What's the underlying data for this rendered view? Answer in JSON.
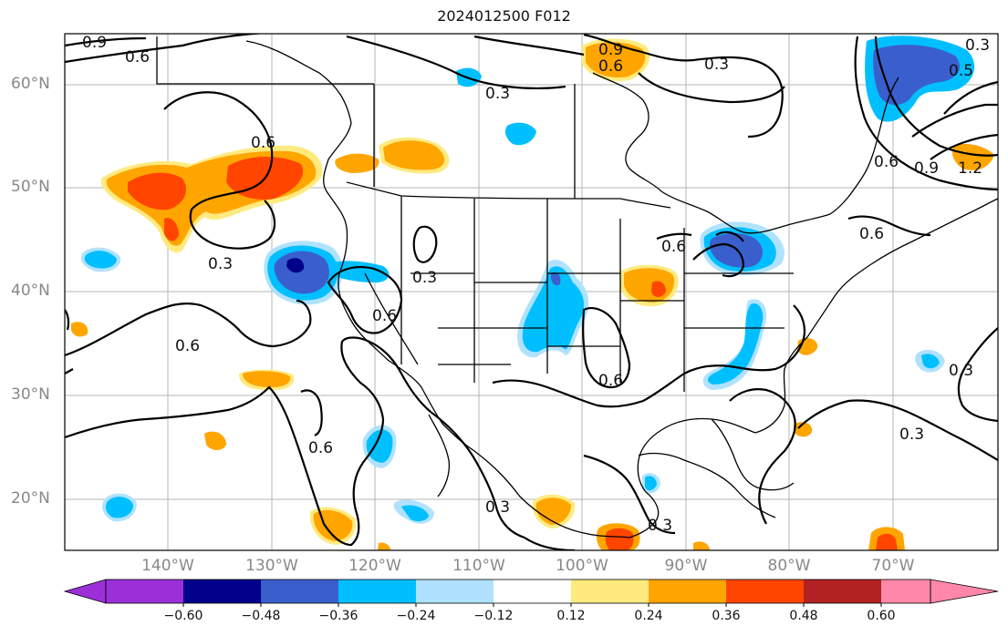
{
  "title": "2024012500 F012",
  "lat_labels": [
    "60°N",
    "50°N",
    "40°N",
    "30°N",
    "20°N"
  ],
  "lon_labels": [
    "140°W",
    "130°W",
    "120°W",
    "110°W",
    "100°W",
    "90°W",
    "80°W",
    "70°W"
  ],
  "colorbar": {
    "ticks": [
      "−0.60",
      "−0.48",
      "−0.36",
      "−0.24",
      "−0.12",
      "0.12",
      "0.24",
      "0.36",
      "0.48",
      "0.60"
    ],
    "colors": [
      "#9b30d9",
      "#00008b",
      "#3a5fcd",
      "#00bfff",
      "#b0e2ff",
      "#ffffff",
      "#ffea7f",
      "#ffa500",
      "#ff4500",
      "#b22222",
      "#ff88aa"
    ]
  },
  "contour_labels": [
    "0.9",
    "0.6",
    "0.9",
    "0.6",
    "0.3",
    "0.3",
    "0.5",
    "0.6",
    "0.9",
    "1.2",
    "0.6",
    "0.6",
    "0.3",
    "0.3",
    "0.6",
    "0.6",
    "0.6",
    "0.6",
    "0.3",
    "0.6",
    "0.3",
    "0.3",
    "0.3",
    "0.3"
  ],
  "colors": {
    "orange": "#ffa500",
    "red_orange": "#ff4500",
    "yellow": "#ffea7f",
    "sky": "#00bfff",
    "light_blue": "#b0e2ff",
    "royal": "#3a5fcd",
    "navy": "#00008b",
    "pink": "#ff88aa"
  }
}
